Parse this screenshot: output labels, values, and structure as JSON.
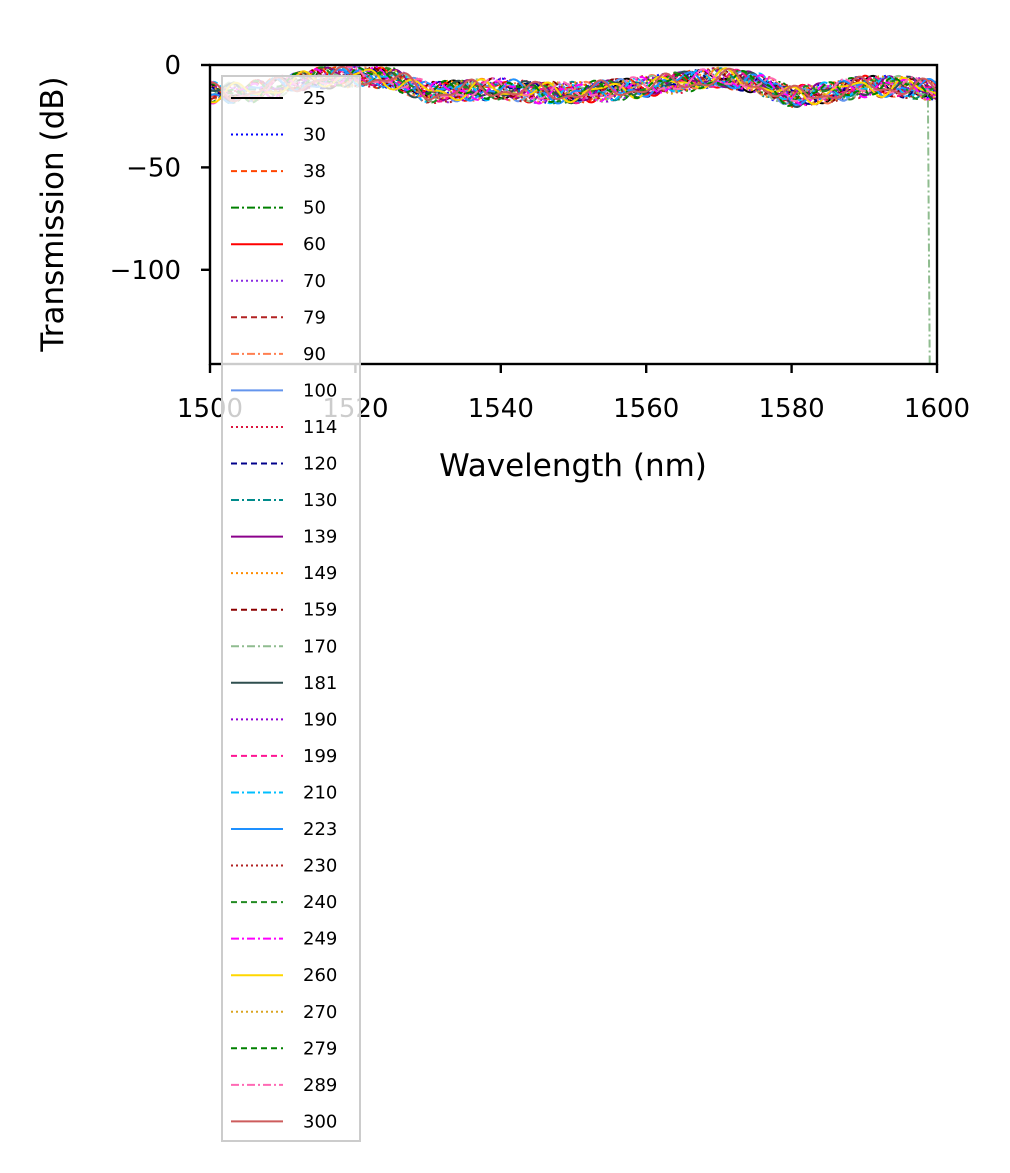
{
  "chart_data": {
    "type": "line",
    "title": "",
    "xlabel": "Wavelength (nm)",
    "ylabel": "Transmission (dB)",
    "xlim": [
      1500,
      1600
    ],
    "ylim": [
      -146,
      0
    ],
    "xticks": [
      1500,
      1520,
      1540,
      1560,
      1580,
      1600
    ],
    "yticks": [
      0,
      -50,
      -100
    ],
    "xtick_labels": [
      "1500",
      "1520",
      "1540",
      "1560",
      "1580",
      "1600"
    ],
    "ytick_labels": [
      "0",
      "−50",
      "−100"
    ],
    "grid": false,
    "legend_position": "upper-left",
    "x": [
      1500,
      1505,
      1510,
      1515,
      1520,
      1525,
      1530,
      1535,
      1540,
      1545,
      1550,
      1555,
      1560,
      1565,
      1570,
      1575,
      1580,
      1585,
      1590,
      1595,
      1600
    ],
    "envelope_values": [
      -12,
      -12,
      -9,
      -5,
      -4,
      -5,
      -12,
      -11,
      -10,
      -12,
      -12,
      -11,
      -9,
      -7,
      -5,
      -7,
      -14,
      -12,
      -9,
      -9,
      -11
    ],
    "series": [
      {
        "name": "25",
        "color": "#000000",
        "dash": "solid"
      },
      {
        "name": "30",
        "color": "#0000ff",
        "dash": "dotted"
      },
      {
        "name": "38",
        "color": "#ff4500",
        "dash": "dashed"
      },
      {
        "name": "50",
        "color": "#008000",
        "dash": "dashdot"
      },
      {
        "name": "60",
        "color": "#ff0000",
        "dash": "solid"
      },
      {
        "name": "70",
        "color": "#8a2be2",
        "dash": "dotted"
      },
      {
        "name": "79",
        "color": "#b22222",
        "dash": "dashed"
      },
      {
        "name": "90",
        "color": "#ff7f50",
        "dash": "dashdot"
      },
      {
        "name": "100",
        "color": "#6495ed",
        "dash": "solid"
      },
      {
        "name": "114",
        "color": "#dc143c",
        "dash": "dotted"
      },
      {
        "name": "120",
        "color": "#00008b",
        "dash": "dashed"
      },
      {
        "name": "130",
        "color": "#008b8b",
        "dash": "dashdot"
      },
      {
        "name": "139",
        "color": "#8b008b",
        "dash": "solid"
      },
      {
        "name": "149",
        "color": "#ff8c00",
        "dash": "dotted"
      },
      {
        "name": "159",
        "color": "#8b0000",
        "dash": "dashed"
      },
      {
        "name": "170",
        "color": "#8fbc8f",
        "dash": "dashdot"
      },
      {
        "name": "181",
        "color": "#2f4f4f",
        "dash": "solid"
      },
      {
        "name": "190",
        "color": "#9400d3",
        "dash": "dotted"
      },
      {
        "name": "199",
        "color": "#ff1493",
        "dash": "dashed"
      },
      {
        "name": "210",
        "color": "#00bfff",
        "dash": "dashdot"
      },
      {
        "name": "223",
        "color": "#1e90ff",
        "dash": "solid"
      },
      {
        "name": "230",
        "color": "#b22222",
        "dash": "dotted"
      },
      {
        "name": "240",
        "color": "#228b22",
        "dash": "dashed"
      },
      {
        "name": "249",
        "color": "#ff00ff",
        "dash": "dashdot"
      },
      {
        "name": "260",
        "color": "#ffd700",
        "dash": "solid"
      },
      {
        "name": "270",
        "color": "#daa520",
        "dash": "dotted"
      },
      {
        "name": "279",
        "color": "#008000",
        "dash": "dashed"
      },
      {
        "name": "289",
        "color": "#ff69b4",
        "dash": "dashdot"
      },
      {
        "name": "300",
        "color": "#cd5c5c",
        "dash": "solid"
      }
    ],
    "annotations": [
      "Series 170 drops to about -146 dB near 1599 nm"
    ]
  }
}
